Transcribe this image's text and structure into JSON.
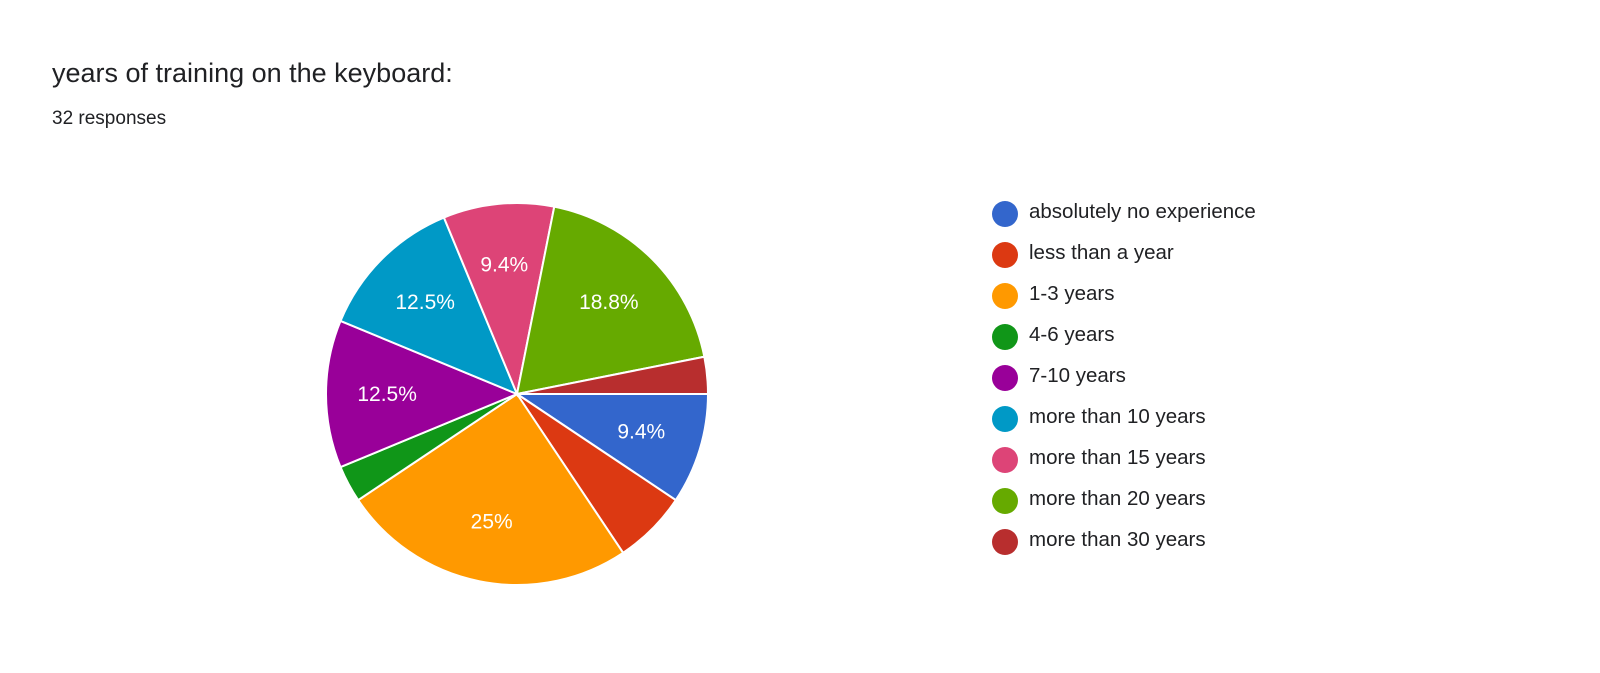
{
  "chart_data": {
    "type": "pie",
    "title": "years of training on the keyboard:",
    "subtitle": "32 responses",
    "legend_position": "right",
    "slices": [
      {
        "label": "absolutely no experience",
        "value": 3,
        "percent_label": "9.4%",
        "color": "#3366cc"
      },
      {
        "label": "less than a year",
        "value": 2,
        "percent_label": "",
        "color": "#dc3912"
      },
      {
        "label": "1-3 years",
        "value": 8,
        "percent_label": "25%",
        "color": "#ff9900"
      },
      {
        "label": "4-6 years",
        "value": 1,
        "percent_label": "",
        "color": "#109618"
      },
      {
        "label": "7-10 years",
        "value": 4,
        "percent_label": "12.5%",
        "color": "#990099"
      },
      {
        "label": "more than 10 years",
        "value": 4,
        "percent_label": "12.5%",
        "color": "#0099c6"
      },
      {
        "label": "more than 15 years",
        "value": 3,
        "percent_label": "9.4%",
        "color": "#dd4477"
      },
      {
        "label": "more than 20 years",
        "value": 6,
        "percent_label": "18.8%",
        "color": "#66aa00"
      },
      {
        "label": "more than 30 years",
        "value": 1,
        "percent_label": "",
        "color": "#b82e2e"
      }
    ]
  }
}
